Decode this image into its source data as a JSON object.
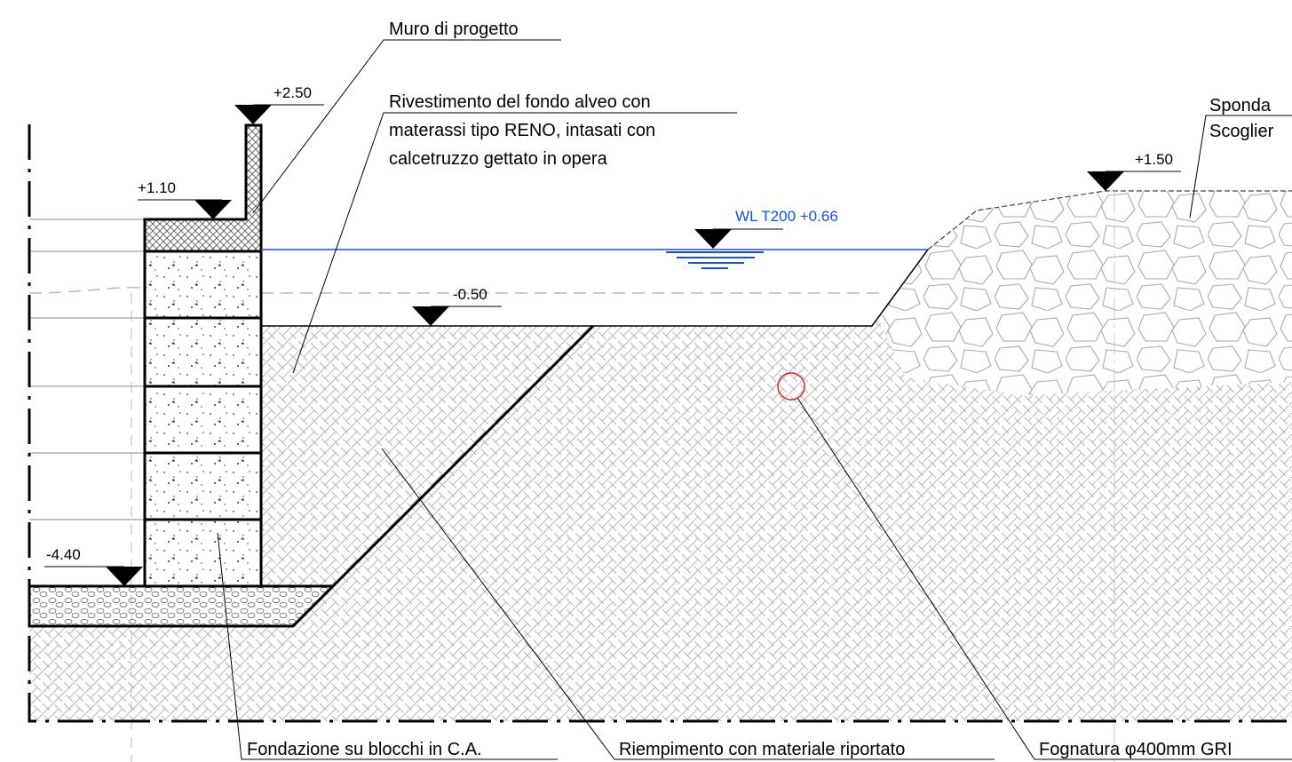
{
  "labels": {
    "wall": "Muro di progetto",
    "lining": [
      "Rivestimento del fondo alveo con",
      "materassi tipo RENO, intasati con",
      "calcetruzzo gettato in opera"
    ],
    "bank": [
      "Sponda",
      "Scoglier"
    ],
    "foundation": "Fondazione su blocchi in C.A.",
    "fill": "Riempimento con materiale riportato",
    "sewer": "Fognatura φ400mm GRI"
  },
  "levels": {
    "wall_top": "+2.50",
    "wall_base": "+1.10",
    "water": "WL T200 +0.66",
    "bed": "-0.50",
    "bank_top": "+1.50",
    "foundation": "-4.40"
  }
}
